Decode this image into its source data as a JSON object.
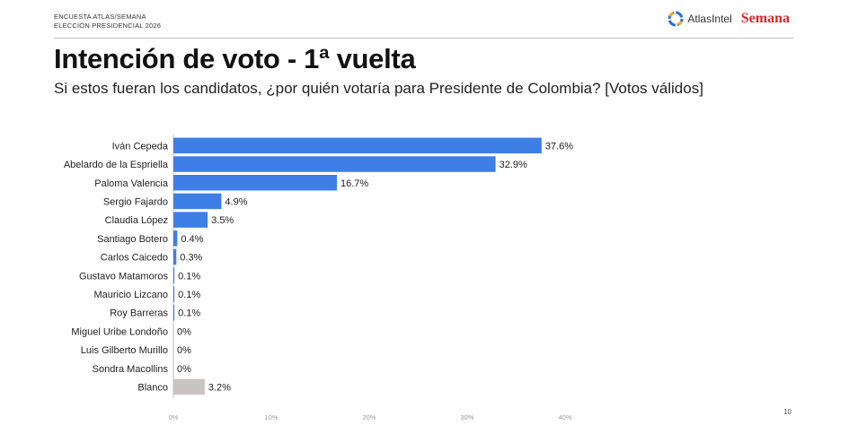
{
  "header": {
    "survey_line1": "ENCUESTA ATLAS/SEMANA",
    "survey_line2": "ELECCIÓN PRESIDENCIAL 2026",
    "atlas_brand": "AtlasIntel",
    "semana_brand": "Semana"
  },
  "title": "Intención de voto - 1ª vuelta",
  "subtitle": "Si estos fueran los candidatos, ¿por quién votaría para Presidente de Colombia? [Votos válidos]",
  "page_number": "10",
  "colors": {
    "bar_candidate": "#3d7fe6",
    "bar_blanco": "#c9c4c1",
    "axis_line": "#bbbbbb",
    "tick_text": "#999999"
  },
  "chart_data": {
    "type": "bar",
    "orientation": "horizontal",
    "categories": [
      "Iván Cepeda",
      "Abelardo de la Espriella",
      "Paloma Valencia",
      "Sergio Fajardo",
      "Claudia López",
      "Santiago Botero",
      "Carlos Caicedo",
      "Gustavo Matamoros",
      "Mauricio Lizcano",
      "Roy Barreras",
      "Miguel Uribe Londoño",
      "Luis Gilberto Murillo",
      "Sondra Macollins",
      "Blanco"
    ],
    "values": [
      37.6,
      32.9,
      16.7,
      4.9,
      3.5,
      0.4,
      0.3,
      0.1,
      0.1,
      0.1,
      0,
      0,
      0,
      3.2
    ],
    "value_labels": [
      "37.6%",
      "32.9%",
      "16.7%",
      "4.9%",
      "3.5%",
      "0.4%",
      "0.3%",
      "0.1%",
      "0.1%",
      "0.1%",
      "0%",
      "0%",
      "0%",
      "3.2%"
    ],
    "bar_colors": [
      "#3d7fe6",
      "#3d7fe6",
      "#3d7fe6",
      "#3d7fe6",
      "#3d7fe6",
      "#3d7fe6",
      "#3d7fe6",
      "#3d7fe6",
      "#3d7fe6",
      "#3d7fe6",
      "#3d7fe6",
      "#3d7fe6",
      "#3d7fe6",
      "#c9c4c1"
    ],
    "xlim": [
      0,
      40
    ],
    "xticks": [
      0,
      10,
      20,
      30,
      40
    ],
    "xtick_labels": [
      "0%",
      "10%",
      "20%",
      "30%",
      "40%"
    ],
    "grid": false,
    "legend": "none"
  }
}
